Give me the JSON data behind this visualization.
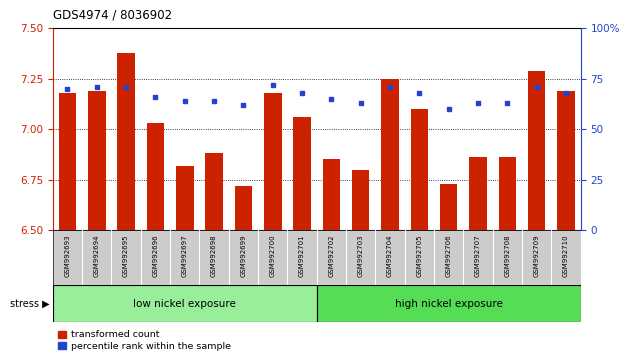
{
  "title": "GDS4974 / 8036902",
  "samples": [
    "GSM992693",
    "GSM992694",
    "GSM992695",
    "GSM992696",
    "GSM992697",
    "GSM992698",
    "GSM992699",
    "GSM992700",
    "GSM992701",
    "GSM992702",
    "GSM992703",
    "GSM992704",
    "GSM992705",
    "GSM992706",
    "GSM992707",
    "GSM992708",
    "GSM992709",
    "GSM992710"
  ],
  "red_values": [
    7.18,
    7.19,
    7.38,
    7.03,
    6.82,
    6.88,
    6.72,
    7.18,
    7.06,
    6.85,
    6.8,
    7.25,
    7.1,
    6.73,
    6.86,
    6.86,
    7.29,
    7.19
  ],
  "blue_values": [
    70,
    71,
    71,
    66,
    64,
    64,
    62,
    72,
    68,
    65,
    63,
    71,
    68,
    60,
    63,
    63,
    71,
    68
  ],
  "ylim_left": [
    6.5,
    7.5
  ],
  "ylim_right": [
    0,
    100
  ],
  "yticks_left": [
    6.5,
    6.75,
    7.0,
    7.25,
    7.5
  ],
  "yticks_right": [
    0,
    25,
    50,
    75,
    100
  ],
  "ytick_labels_right": [
    "0",
    "25",
    "50",
    "75",
    "100%"
  ],
  "grid_values": [
    6.75,
    7.0,
    7.25
  ],
  "group1_label": "low nickel exposure",
  "group2_label": "high nickel exposure",
  "group1_count": 9,
  "stress_label": "stress",
  "legend1": "transformed count",
  "legend2": "percentile rank within the sample",
  "red_color": "#CC2200",
  "blue_color": "#2244CC",
  "group1_color": "#99EE99",
  "group2_color": "#55DD55",
  "tick_area_bg": "#CCCCCC",
  "white": "#FFFFFF",
  "black": "#000000"
}
